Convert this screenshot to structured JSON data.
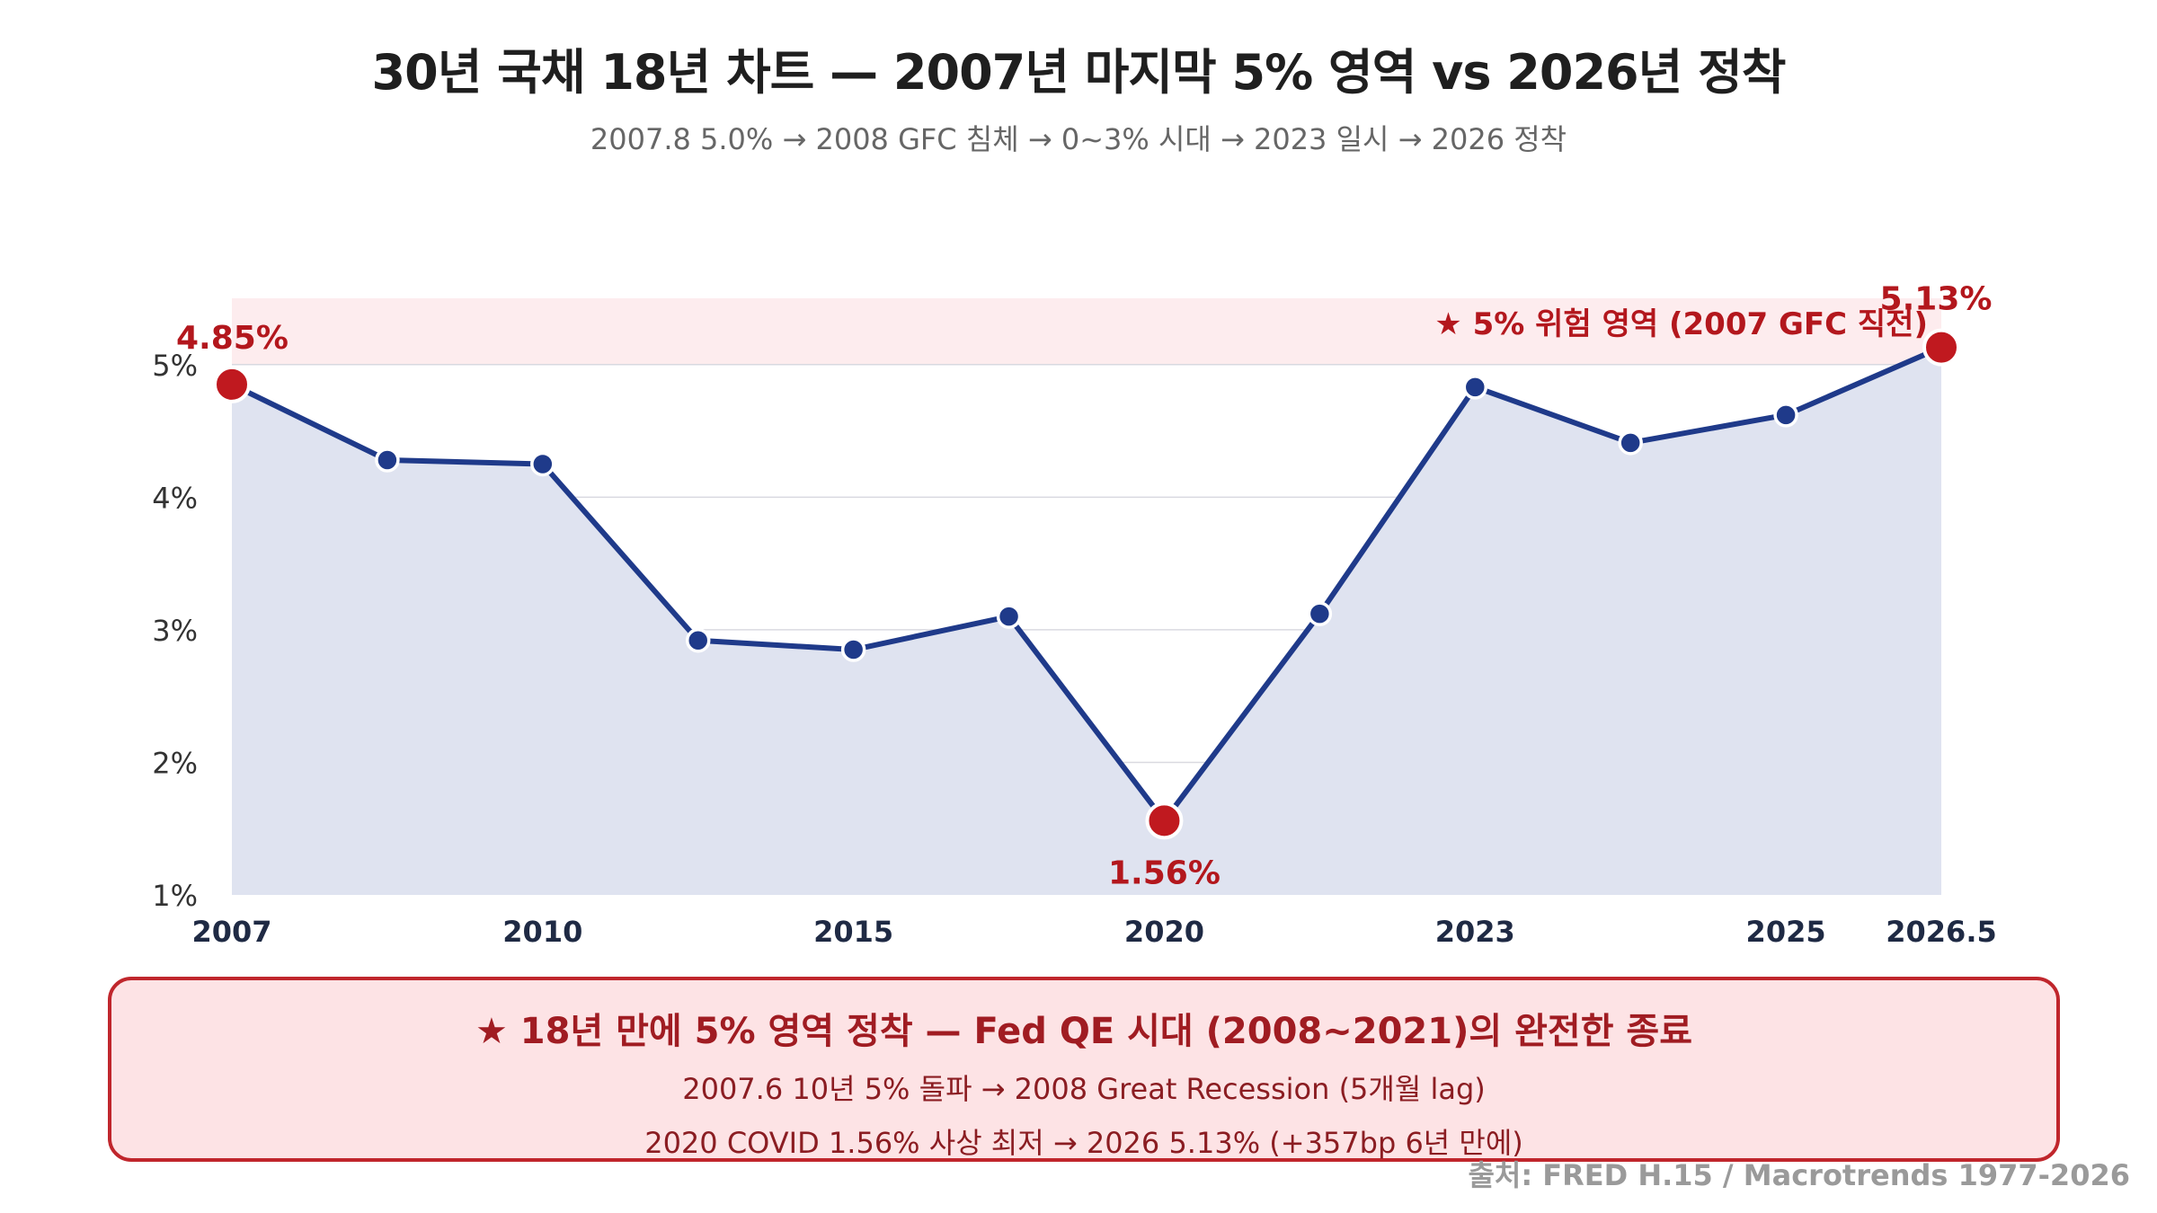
{
  "title": "30년 국채 18년 차트 — 2007년 마지막 5% 영역 vs 2026년 정착",
  "subtitle": "2007.8 5.0% → 2008 GFC 침체 → 0~3% 시대 → 2023 일시 → 2026 정착",
  "chart_data": {
    "type": "line",
    "x": [
      2007,
      2008.5,
      2010,
      2011.5,
      2013,
      2014.5,
      2016,
      2017.5,
      2019,
      2020.5,
      2022,
      2023.5
    ],
    "values": [
      4.85,
      4.28,
      4.25,
      2.92,
      2.85,
      3.1,
      1.56,
      3.12,
      4.83,
      4.41,
      4.62,
      5.13
    ],
    "x_tick_positions": [
      2007,
      2010,
      2013,
      2016,
      2019,
      2022,
      2023.5
    ],
    "x_tick_labels": [
      "2007",
      "2010",
      "2015",
      "2020",
      "2023",
      "2025",
      "2026.5"
    ],
    "y_ticks": [
      1,
      2,
      3,
      4,
      5
    ],
    "y_tick_labels": [
      "1%",
      "2%",
      "3%",
      "4%",
      "5%"
    ],
    "ylim": [
      1,
      5.5
    ],
    "xlim": [
      2007,
      2023.5
    ],
    "highlight_indices": [
      0,
      6,
      11
    ],
    "point_labels": [
      {
        "index": 0,
        "text": "4.85%"
      },
      {
        "index": 6,
        "text": "1.56%"
      },
      {
        "index": 11,
        "text": "5.13%"
      }
    ],
    "danger_zone": {
      "from": 5,
      "to": 5.5,
      "label": "★ 5% 위험 영역 (2007 GFC 직전)"
    },
    "grid": true,
    "colors": {
      "line": "#1f3a8a",
      "area": "#dfe3f0",
      "highlight": "#c0191f",
      "zone": "#fdecee",
      "label": "#b3171d",
      "axis_text": "#333333",
      "x_label_text": "#1f2a44"
    }
  },
  "summary": {
    "title": "★ 18년 만에 5% 영역 정착 — Fed QE 시대 (2008~2021)의 완전한 종료",
    "line1": "2007.6 10년 5% 돌파 → 2008 Great Recession (5개월 lag)",
    "line2": "2020 COVID 1.56% 사상 최저 → 2026 5.13% (+357bp 6년 만에)"
  },
  "source": "출처: FRED H.15 / Macrotrends 1977-2026"
}
